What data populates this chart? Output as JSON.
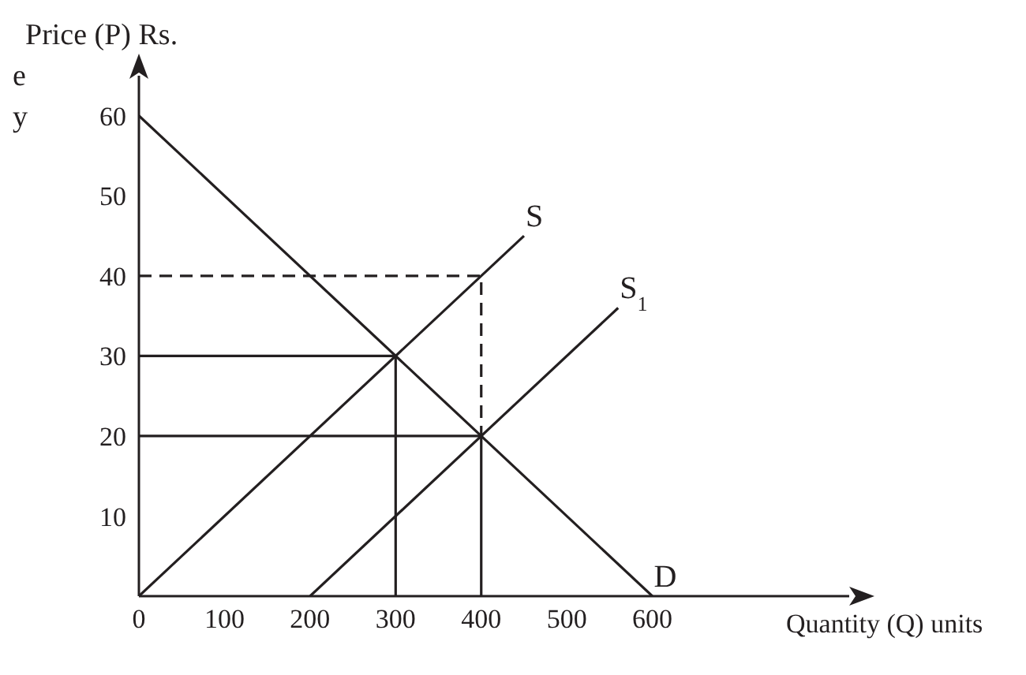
{
  "chart_data": {
    "type": "line",
    "xlabel": "Quantity (Q) units",
    "ylabel": "Price (P) Rs.",
    "xlim": [
      0,
      830
    ],
    "ylim": [
      0,
      65
    ],
    "xticks": [
      0,
      100,
      200,
      300,
      400,
      500,
      600
    ],
    "yticks": [
      10,
      20,
      30,
      40,
      50,
      60
    ],
    "grid": false,
    "legend": false,
    "marker": "none",
    "annotations": [
      "e",
      "y"
    ],
    "series": [
      {
        "name": "D",
        "color": "#231f20",
        "x": [
          0,
          600
        ],
        "values": [
          60,
          0
        ],
        "line_style": "solid"
      },
      {
        "name": "S",
        "color": "#231f20",
        "x": [
          0,
          450
        ],
        "values": [
          0,
          45
        ],
        "line_style": "solid"
      },
      {
        "name": "S$_{1}$",
        "color": "#231f20",
        "x": [
          200,
          560
        ],
        "values": [
          0,
          36
        ],
        "line_style": "solid"
      },
      {
        "color": "#231f20",
        "x": [
          0,
          300,
          300
        ],
        "values": [
          30,
          30,
          0
        ],
        "line_style": "solid"
      },
      {
        "color": "#231f20",
        "x": [
          0,
          400,
          400
        ],
        "values": [
          20,
          20,
          0
        ],
        "line_style": "solid"
      },
      {
        "color": "#231f20",
        "x": [
          0,
          400,
          400
        ],
        "values": [
          40,
          40,
          20
        ],
        "line_style": "dashed"
      }
    ]
  }
}
